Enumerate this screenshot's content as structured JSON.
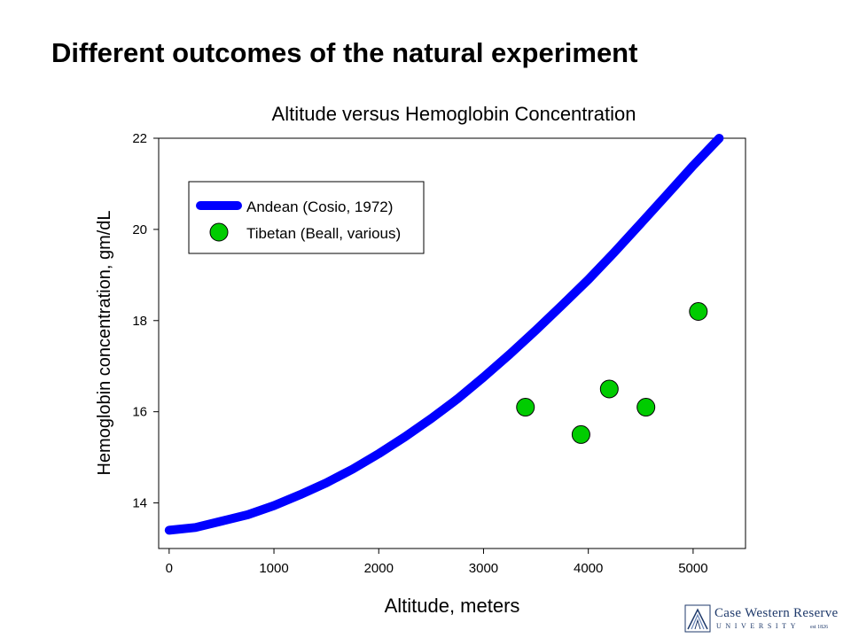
{
  "slide": {
    "title": "Different outcomes of the natural experiment"
  },
  "chart_data": {
    "type": "scatter",
    "title": "Altitude versus Hemoglobin Concentration",
    "xlabel": "Altitude, meters",
    "ylabel": "Hemoglobin concentration, gm/dL",
    "xlim": [
      -100,
      5500
    ],
    "ylim": [
      13,
      22
    ],
    "x_ticks": [
      0,
      1000,
      2000,
      3000,
      4000,
      5000
    ],
    "y_ticks": [
      14,
      16,
      18,
      20,
      22
    ],
    "legend_placement": "top-left",
    "grid": false,
    "series": [
      {
        "name": "Andean (Cosio, 1972)",
        "kind": "line",
        "color": "#0000ff",
        "x": [
          0,
          250,
          500,
          750,
          1000,
          1250,
          1500,
          1750,
          2000,
          2250,
          2500,
          2750,
          3000,
          3250,
          3500,
          3750,
          4000,
          4250,
          4500,
          4750,
          5000,
          5250
        ],
        "y": [
          13.4,
          13.46,
          13.6,
          13.74,
          13.94,
          14.18,
          14.44,
          14.74,
          15.08,
          15.45,
          15.85,
          16.28,
          16.76,
          17.26,
          17.79,
          18.34,
          18.9,
          19.5,
          20.13,
          20.76,
          21.4,
          22.0
        ]
      },
      {
        "name": "Tibetan (Beall, various)",
        "kind": "scatter",
        "color": "#00cc00",
        "x": [
          3400,
          3930,
          4200,
          4550,
          5050
        ],
        "y": [
          16.1,
          15.5,
          16.5,
          16.1,
          18.2
        ]
      }
    ]
  },
  "logo": {
    "main": "Case Western Reserve",
    "sub": "UNIVERSITY",
    "est": "est 1826"
  }
}
